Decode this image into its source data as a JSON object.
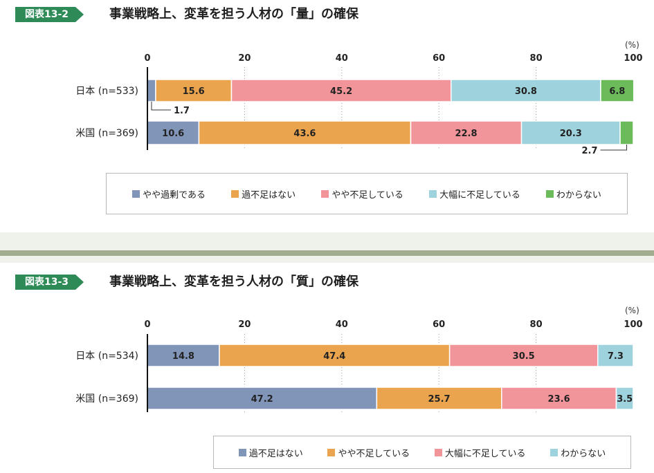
{
  "chart_data": [
    {
      "type": "bar",
      "orientation": "horizontal-stacked",
      "badge": "図表13-2",
      "title": "事業戦略上、変革を担う人材の「量」の確保",
      "unit": "(%)",
      "xlim": [
        0,
        100
      ],
      "xticks": [
        "0",
        "20",
        "40",
        "60",
        "80",
        "100"
      ],
      "categories": [
        "日本 (n=533)",
        "米国 (n=369)"
      ],
      "series": [
        {
          "name": "やや過剰である",
          "color": "#8095b8",
          "values": [
            1.7,
            10.6
          ]
        },
        {
          "name": "過不足はない",
          "color": "#eba44e",
          "values": [
            15.6,
            43.6
          ]
        },
        {
          "name": "やや不足している",
          "color": "#f2959a",
          "values": [
            45.2,
            22.8
          ]
        },
        {
          "name": "大幅に不足している",
          "color": "#9ed3dd",
          "values": [
            30.8,
            20.3
          ]
        },
        {
          "name": "わからない",
          "color": "#6bbb5a",
          "values": [
            6.8,
            2.7
          ]
        }
      ],
      "data_labels": [
        [
          "1.7",
          "15.6",
          "45.2",
          "30.8",
          "6.8"
        ],
        [
          "10.6",
          "43.6",
          "22.8",
          "20.3",
          "2.7"
        ]
      ],
      "legend_position": "bottom"
    },
    {
      "type": "bar",
      "orientation": "horizontal-stacked",
      "badge": "図表13-3",
      "title": "事業戦略上、変革を担う人材の「質」の確保",
      "unit": "(%)",
      "xlim": [
        0,
        100
      ],
      "xticks": [
        "0",
        "20",
        "40",
        "60",
        "80",
        "100"
      ],
      "categories": [
        "日本 (n=534)",
        "米国 (n=369)"
      ],
      "series": [
        {
          "name": "過不足はない",
          "color": "#8095b8",
          "values": [
            14.8,
            47.2
          ]
        },
        {
          "name": "やや不足している",
          "color": "#eba44e",
          "values": [
            47.4,
            25.7
          ]
        },
        {
          "name": "大幅に不足している",
          "color": "#f2959a",
          "values": [
            30.5,
            23.6
          ]
        },
        {
          "name": "わからない",
          "color": "#9ed3dd",
          "values": [
            7.3,
            3.5
          ]
        }
      ],
      "data_labels": [
        [
          "14.8",
          "47.4",
          "30.5",
          "7.3"
        ],
        [
          "47.2",
          "25.7",
          "23.6",
          "3.5"
        ]
      ],
      "legend_position": "bottom"
    }
  ]
}
